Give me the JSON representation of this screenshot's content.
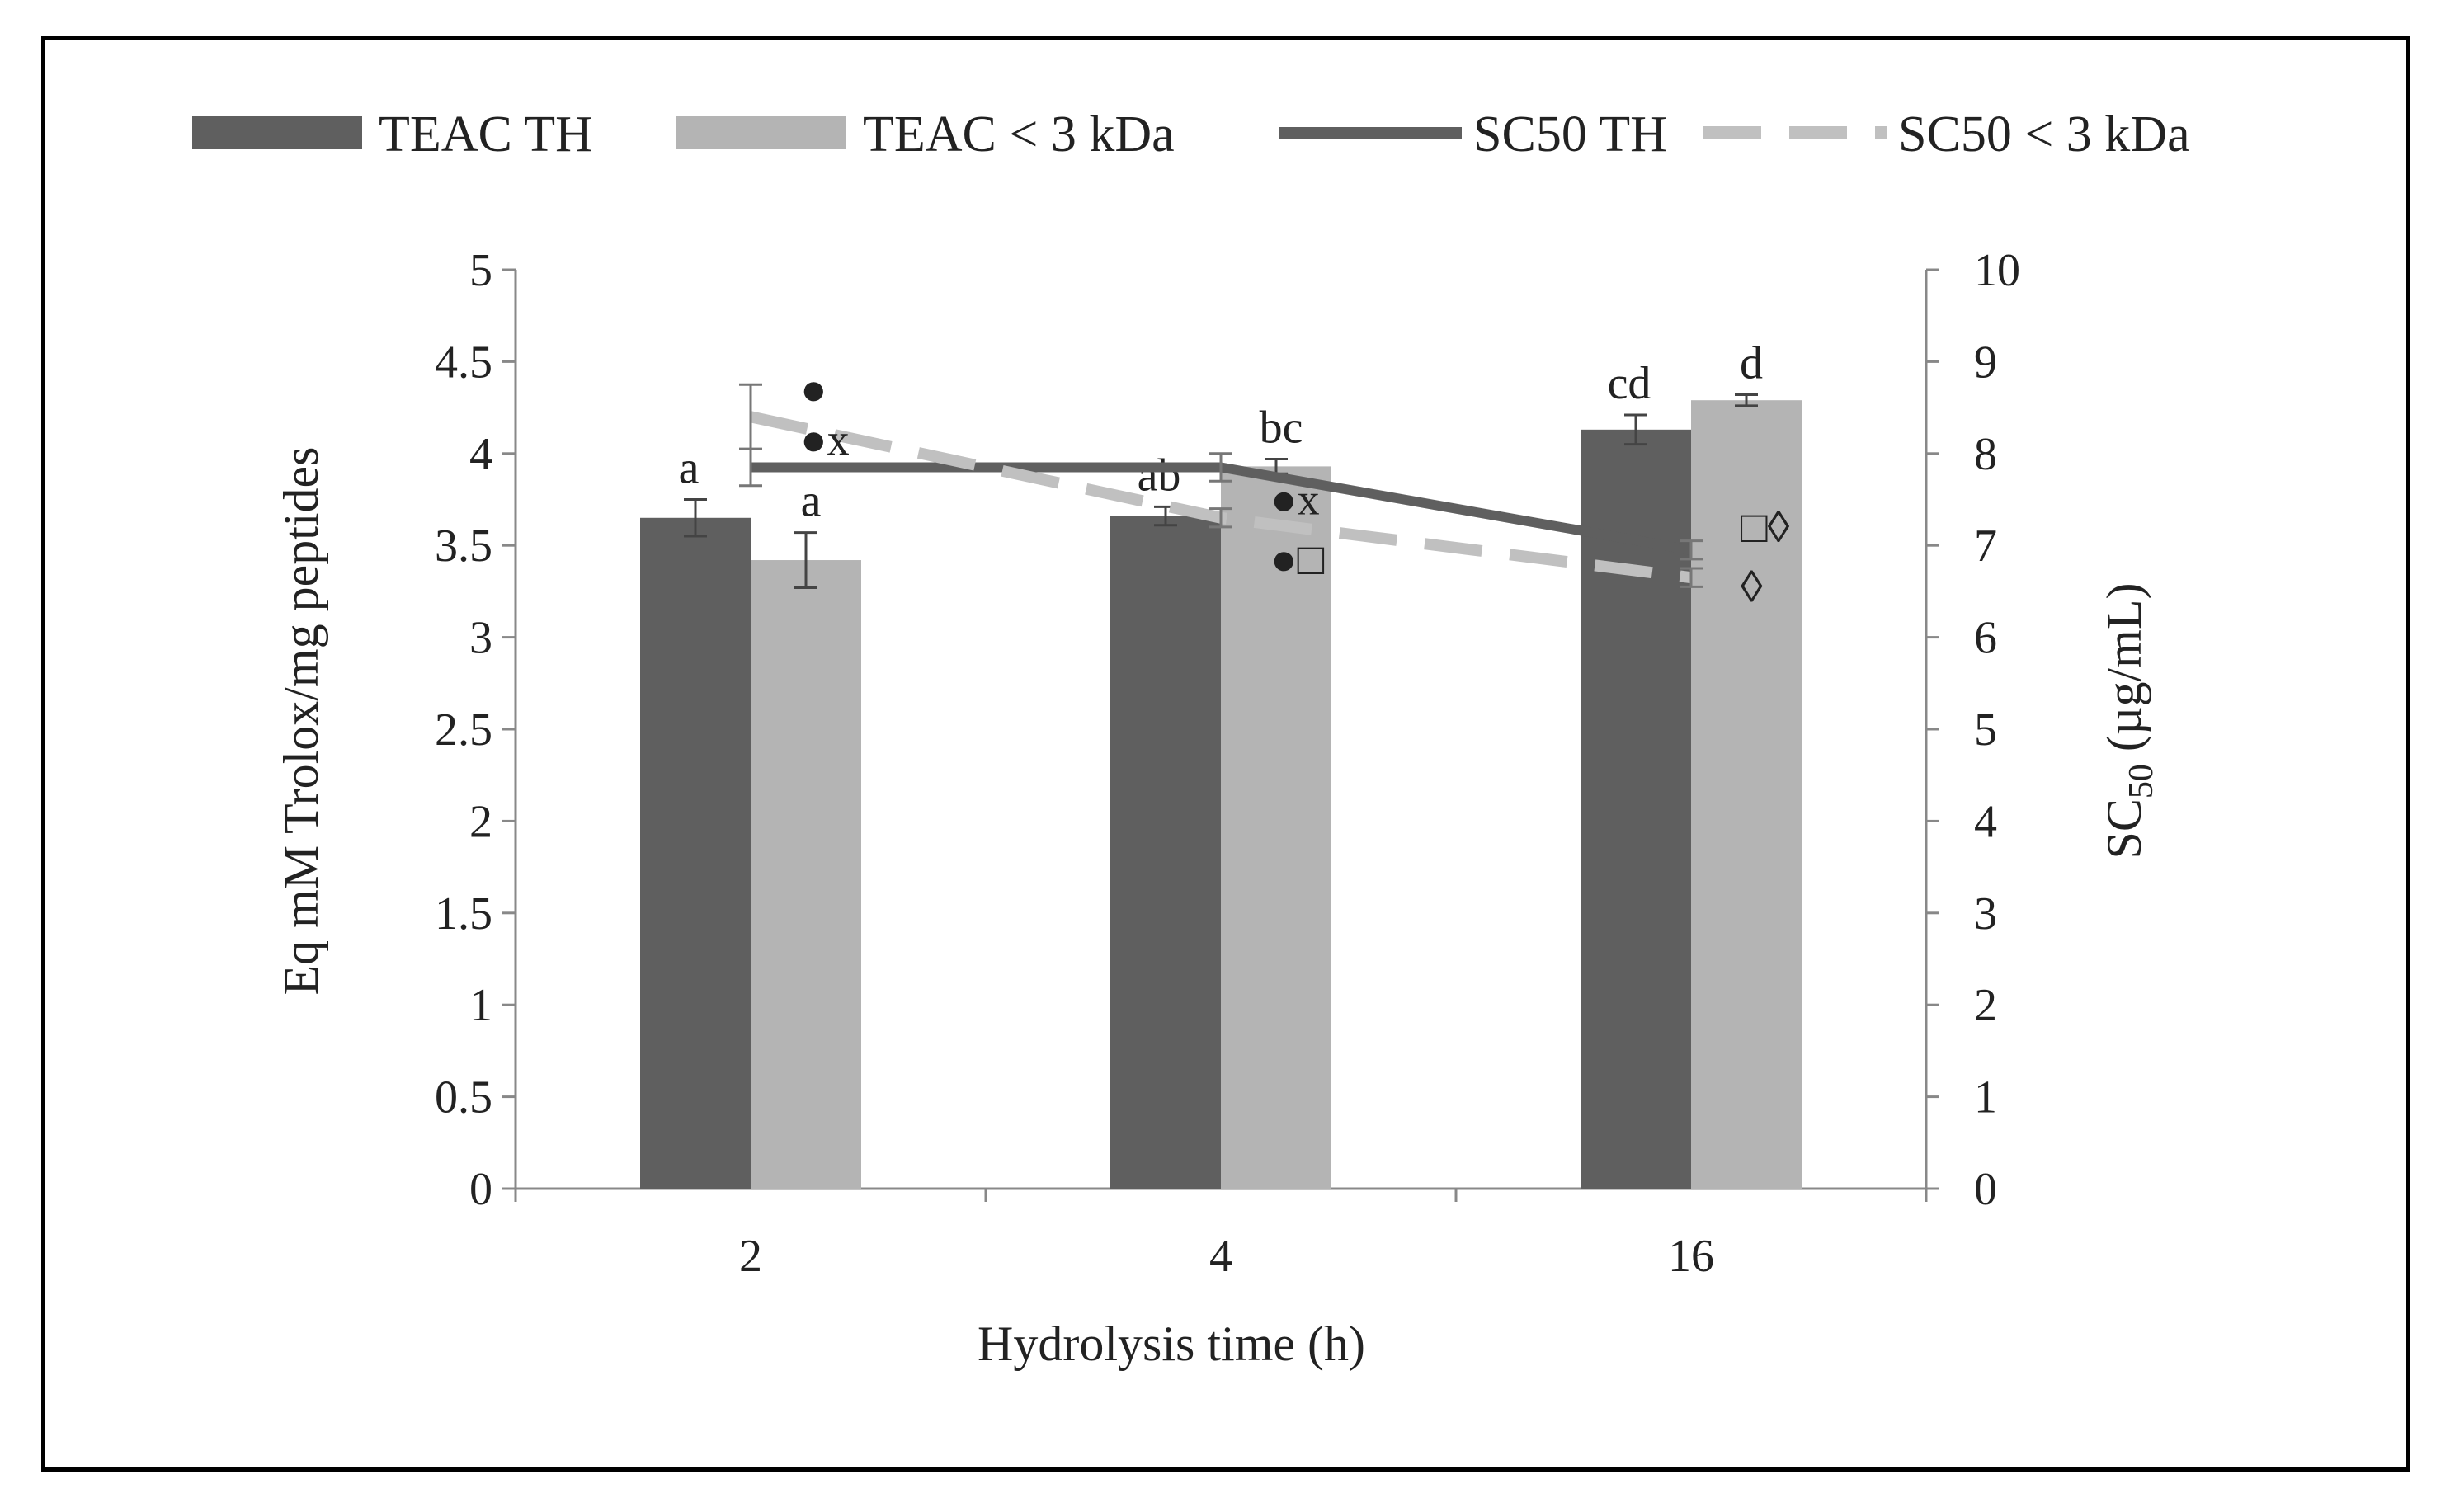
{
  "chart_data": {
    "type": "bar",
    "categories": [
      "2",
      "4",
      "16"
    ],
    "xlabel": "Hydrolysis time (h)",
    "ylabel": "Eq mM Trolox/mg peptides",
    "y2label_main": "SC",
    "y2label_sub": "50",
    "y2label_unit": " (µg/mL)",
    "ylim": [
      0,
      5
    ],
    "y2lim": [
      0,
      10
    ],
    "y_ticks": [
      "0",
      "0.5",
      "1",
      "1.5",
      "2",
      "2.5",
      "3",
      "3.5",
      "4",
      "4.5",
      "5"
    ],
    "y2_ticks": [
      "0",
      "1",
      "2",
      "3",
      "4",
      "5",
      "6",
      "7",
      "8",
      "9",
      "10"
    ],
    "bar_series": [
      {
        "name": "TEAC TH",
        "color": "#5f5f5f",
        "values": [
          3.65,
          3.66,
          4.13
        ],
        "errors": [
          0.1,
          0.05,
          0.08
        ],
        "labels": [
          "a",
          "ab",
          "cd"
        ]
      },
      {
        "name": "TEAC < 3 kDa",
        "color": "#b4b4b4",
        "values": [
          3.42,
          3.93,
          4.29
        ],
        "errors": [
          0.15,
          0.04,
          0.03
        ],
        "labels": [
          "a",
          "bc",
          "d"
        ]
      }
    ],
    "line_series": [
      {
        "name": "SC50 TH",
        "color": "#5f5f5f",
        "dashed": false,
        "values": [
          7.85,
          7.85,
          6.95
        ],
        "errors": [
          0.2,
          0.15,
          0.1
        ]
      },
      {
        "name": "SC50 < 3 kDa",
        "color": "#c0c0c0",
        "dashed": true,
        "values": [
          8.4,
          7.3,
          6.65
        ],
        "errors": [
          0.35,
          0.1,
          0.1
        ]
      }
    ],
    "line_markers": [
      {
        "series": "SC50 TH",
        "category": "2",
        "y2": 8.7,
        "symbols": [
          "●"
        ]
      },
      {
        "series": "SC50 < 3 kDa",
        "category": "2",
        "y2": 8.15,
        "symbols": [
          "●",
          "x"
        ]
      },
      {
        "series": "SC50 TH",
        "category": "4",
        "y2": 7.5,
        "symbols": [
          "●",
          "x"
        ]
      },
      {
        "series": "SC50 < 3 kDa",
        "category": "4",
        "y2": 6.85,
        "symbols": [
          "●",
          "□"
        ]
      },
      {
        "series": "SC50 TH",
        "category": "16",
        "y2": 7.2,
        "symbols": [
          "□",
          "◊"
        ]
      },
      {
        "series": "SC50 < 3 kDa",
        "category": "16",
        "y2": 6.55,
        "symbols": [
          "◊"
        ]
      }
    ],
    "legend_position": "top"
  }
}
